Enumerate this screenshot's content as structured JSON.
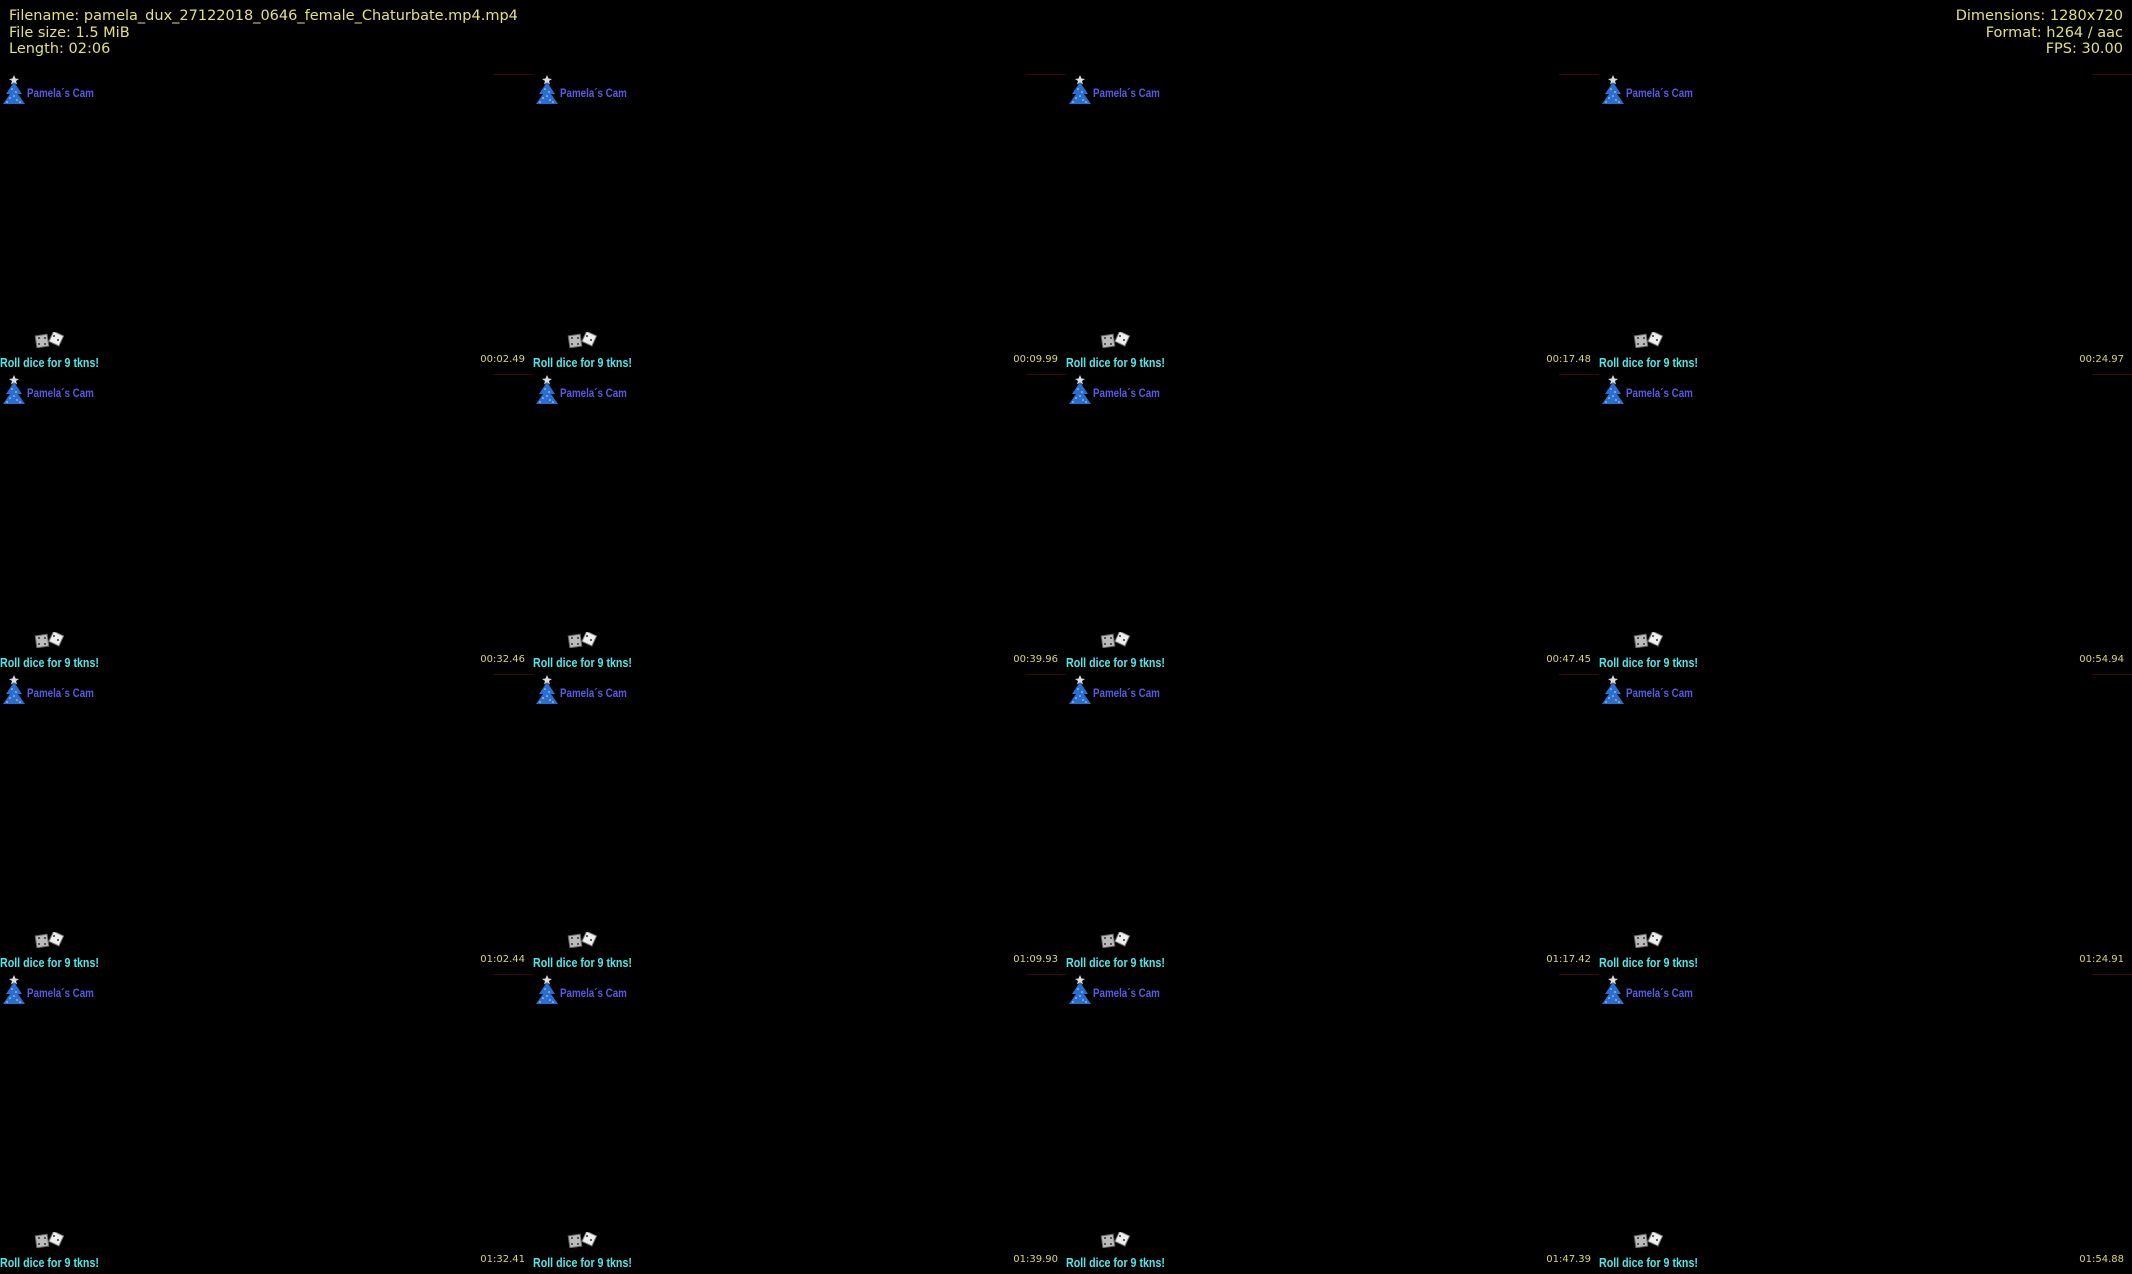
{
  "header": {
    "filename": "Filename: pamela_dux_27122018_0646_female_Chaturbate.mp4.mp4",
    "filesize": "File size: 1.5 MiB",
    "length": "Length: 02:06",
    "dimensions": "Dimensions: 1280x720",
    "format": "Format: h264 / aac",
    "fps": "FPS: 30.00"
  },
  "colors": {
    "header_text": "#e2e27a",
    "cam_text": "#5a5ae6",
    "roll_text": "#4fe8e8",
    "timestamp": "#d8d870",
    "background": "#000000"
  },
  "overlay": {
    "cam_label": "Pamela´s Cam",
    "roll_label": "Roll dice for 9 tkns!",
    "logo_icon": "christmas-tree-icon",
    "dice_icon": "dice-icon"
  },
  "thumbnails": [
    "00:02.49",
    "00:09.99",
    "00:17.48",
    "00:24.97",
    "00:32.46",
    "00:39.96",
    "00:47.45",
    "00:54.94",
    "01:02.44",
    "01:09.93",
    "01:17.42",
    "01:24.91",
    "01:32.41",
    "01:39.90",
    "01:47.39",
    "01:54.88"
  ]
}
